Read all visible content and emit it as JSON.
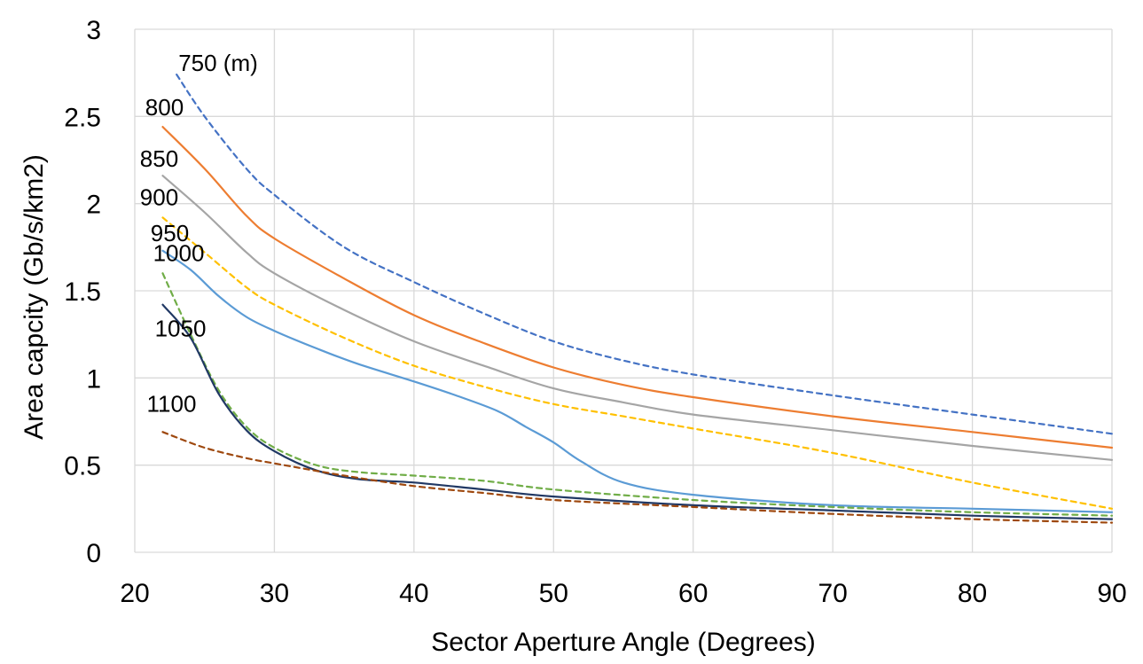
{
  "chart_data": {
    "type": "line",
    "title": "",
    "xlabel": "Sector Aperture Angle (Degrees)",
    "ylabel": "Area capcity (Gb/s/km2)",
    "xlim": [
      20,
      90
    ],
    "ylim": [
      0,
      3
    ],
    "x_ticks": [
      "20",
      "30",
      "40",
      "50",
      "60",
      "70",
      "80",
      "90"
    ],
    "y_ticks": [
      "0",
      "0.5",
      "1",
      "1.5",
      "2",
      "2.5",
      "3"
    ],
    "grid": true,
    "legend": "none",
    "series": [
      {
        "name": "750 (m)",
        "color": "#4472c4",
        "dash": true,
        "x": [
          23,
          25,
          28,
          30,
          35,
          40,
          45,
          50,
          55,
          60,
          70,
          80,
          90
        ],
        "y": [
          2.74,
          2.5,
          2.2,
          2.05,
          1.75,
          1.55,
          1.37,
          1.21,
          1.1,
          1.02,
          0.9,
          0.79,
          0.68
        ]
      },
      {
        "name": "800",
        "color": "#ed7d31",
        "dash": false,
        "x": [
          22,
          25,
          28,
          30,
          35,
          40,
          45,
          50,
          55,
          60,
          70,
          80,
          90
        ],
        "y": [
          2.44,
          2.2,
          1.93,
          1.8,
          1.57,
          1.36,
          1.2,
          1.06,
          0.96,
          0.89,
          0.78,
          0.69,
          0.6
        ]
      },
      {
        "name": "850",
        "color": "#a5a5a5",
        "dash": false,
        "x": [
          22,
          25,
          28,
          30,
          35,
          40,
          45,
          50,
          55,
          60,
          70,
          80,
          90
        ],
        "y": [
          2.16,
          1.95,
          1.72,
          1.6,
          1.39,
          1.21,
          1.07,
          0.94,
          0.86,
          0.79,
          0.7,
          0.61,
          0.53
        ]
      },
      {
        "name": "900",
        "color": "#ffc000",
        "dash": true,
        "x": [
          22,
          25,
          28,
          30,
          35,
          40,
          45,
          50,
          55,
          60,
          70,
          80,
          90
        ],
        "y": [
          1.92,
          1.72,
          1.52,
          1.42,
          1.23,
          1.07,
          0.95,
          0.85,
          0.78,
          0.71,
          0.57,
          0.4,
          0.25
        ]
      },
      {
        "name": "950",
        "color": "#5b9bd5",
        "dash": false,
        "x": [
          22,
          24,
          26,
          28,
          30,
          33,
          36,
          40,
          43,
          46,
          48,
          50,
          52,
          55,
          60,
          70,
          80,
          90
        ],
        "y": [
          1.73,
          1.62,
          1.47,
          1.35,
          1.27,
          1.17,
          1.08,
          0.98,
          0.9,
          0.81,
          0.72,
          0.63,
          0.52,
          0.4,
          0.33,
          0.27,
          0.25,
          0.23
        ]
      },
      {
        "name": "1000",
        "color": "#70ad47",
        "dash": true,
        "x": [
          22,
          24,
          26,
          28,
          30,
          33,
          36,
          40,
          45,
          50,
          60,
          70,
          80,
          90
        ],
        "y": [
          1.6,
          1.25,
          0.93,
          0.72,
          0.6,
          0.5,
          0.46,
          0.44,
          0.41,
          0.36,
          0.3,
          0.26,
          0.23,
          0.21
        ]
      },
      {
        "name": "1050",
        "color": "#203864",
        "dash": false,
        "x": [
          22,
          24,
          26,
          28,
          30,
          33,
          36,
          40,
          45,
          50,
          60,
          70,
          80,
          90
        ],
        "y": [
          1.42,
          1.23,
          0.91,
          0.7,
          0.58,
          0.47,
          0.42,
          0.4,
          0.36,
          0.32,
          0.27,
          0.24,
          0.21,
          0.19
        ]
      },
      {
        "name": "1100",
        "color": "#9e480e",
        "dash": true,
        "x": [
          22,
          25,
          28,
          30,
          35,
          40,
          45,
          50,
          60,
          70,
          80,
          90
        ],
        "y": [
          0.69,
          0.6,
          0.54,
          0.51,
          0.44,
          0.38,
          0.34,
          0.3,
          0.26,
          0.22,
          0.19,
          0.17
        ]
      }
    ]
  }
}
